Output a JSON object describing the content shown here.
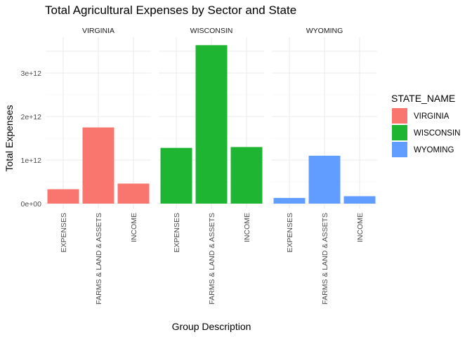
{
  "chart_data": {
    "type": "bar",
    "title": "Total Agricultural Expenses by Sector and State",
    "xlabel": "Group Description",
    "ylabel": "Total Expenses",
    "categories": [
      "EXPENSES",
      "FARMS & LAND & ASSETS",
      "INCOME"
    ],
    "y_ticks": [
      {
        "value": 0,
        "label": "0e+00"
      },
      {
        "value": 1000000000000,
        "label": "1e+12"
      },
      {
        "value": 2000000000000,
        "label": "2e+12"
      },
      {
        "value": 3000000000000,
        "label": "3e+12"
      }
    ],
    "ylim": [
      0,
      3800000000000
    ],
    "grid": true,
    "facet_by": "STATE_NAME",
    "legend": {
      "title": "STATE_NAME",
      "position": "right",
      "entries": [
        "VIRGINIA",
        "WISCONSIN",
        "WYOMING"
      ]
    },
    "series": [
      {
        "name": "VIRGINIA",
        "color": "#F8766D",
        "values": [
          330000000000,
          1750000000000,
          460000000000
        ]
      },
      {
        "name": "WISCONSIN",
        "color": "#1DB531",
        "values": [
          1280000000000,
          3640000000000,
          1300000000000
        ]
      },
      {
        "name": "WYOMING",
        "color": "#619CFF",
        "values": [
          130000000000,
          1100000000000,
          170000000000
        ]
      }
    ]
  }
}
